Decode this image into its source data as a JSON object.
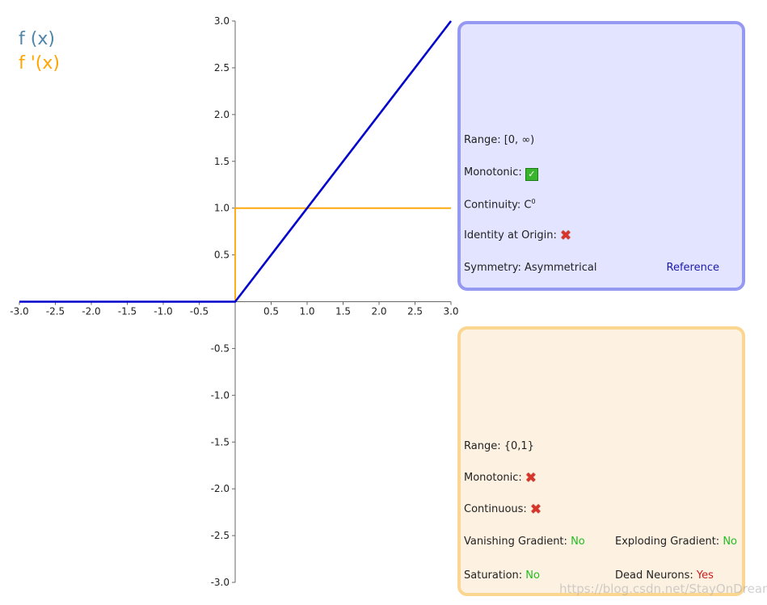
{
  "colors": {
    "f": "#0000cc",
    "df": "#ffa500",
    "legend_f": "#4e85a8",
    "legend_df": "#ffa500",
    "axis": "#666666"
  },
  "legend": {
    "f_label": "f (x)",
    "df_label": "f '(x)"
  },
  "chart_data": {
    "type": "line",
    "title": "",
    "xlabel": "",
    "ylabel": "",
    "xlim": [
      -3.0,
      3.0
    ],
    "ylim": [
      -3.0,
      3.0
    ],
    "grid": false,
    "legend_position": "top-left",
    "x_ticks": [
      "-3.0",
      "-2.5",
      "-2.0",
      "-1.5",
      "-1.0",
      "-0.5",
      "0.5",
      "1.0",
      "1.5",
      "2.0",
      "2.5",
      "3.0"
    ],
    "y_ticks": [
      "3.0",
      "2.5",
      "2.0",
      "1.5",
      "1.0",
      "0.5",
      "-0.5",
      "-1.0",
      "-1.5",
      "-2.0",
      "-2.5",
      "-3.0"
    ],
    "series": [
      {
        "name": "f (x)",
        "x": [
          -3.0,
          0.0,
          3.0
        ],
        "y": [
          0.0,
          0.0,
          3.0
        ]
      },
      {
        "name": "f '(x)",
        "x": [
          -3.0,
          0.0,
          0.0,
          3.0
        ],
        "y": [
          0.0,
          0.0,
          1.0,
          1.0
        ]
      }
    ]
  },
  "function_panel": {
    "range_label": "Range: [0, ∞)",
    "monotonic_label": "Monotonic:",
    "continuity_label": "Continuity: C",
    "continuity_sup": "0",
    "identity_label": "Identity at Origin:",
    "symmetry_label": "Symmetry: Asymmetrical",
    "reference_link": "Reference"
  },
  "derivative_panel": {
    "range_label": "Range: {0,1}",
    "monotonic_label": "Monotonic:",
    "continuous_label": "Continuous:",
    "vanishing_label": "Vanishing Gradient:",
    "vanishing_value": "No",
    "exploding_label": "Exploding Gradient:",
    "exploding_value": "No",
    "saturation_label": "Saturation:",
    "saturation_value": "No",
    "dead_label": "Dead Neurons:",
    "dead_value": "Yes"
  },
  "watermark": "https://blog.csdn.net/StayOnDream"
}
